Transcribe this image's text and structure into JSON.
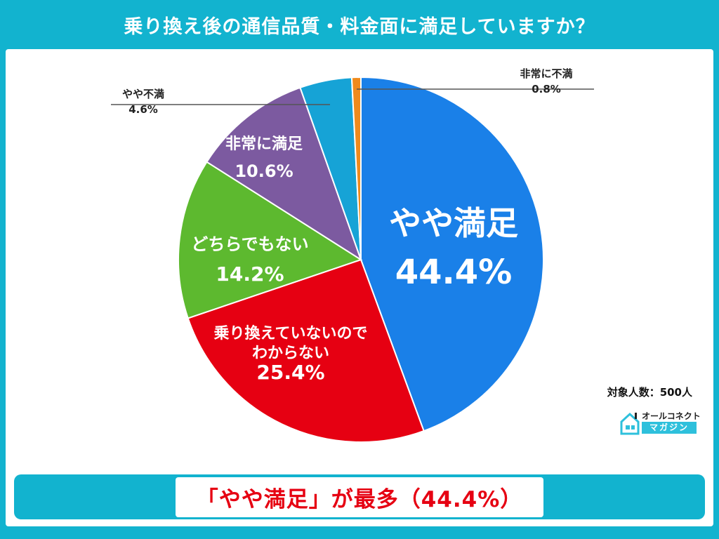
{
  "title": "乗り換え後の通信品質・料金面に満足していますか？",
  "chart_data": {
    "type": "pie",
    "slices": [
      {
        "label": "やや満足",
        "display": [
          "やや満足"
        ],
        "value": 44.4,
        "value_text": "44.4%",
        "color": "#1a80e8"
      },
      {
        "label": "乗り換えていないのでわからない",
        "display": [
          "乗り換えていないので",
          "わからない"
        ],
        "value": 25.4,
        "value_text": "25.4%",
        "color": "#e60012"
      },
      {
        "label": "どちらでもない",
        "display": [
          "どちらでもない"
        ],
        "value": 14.2,
        "value_text": "14.2%",
        "color": "#5db92f"
      },
      {
        "label": "非常に満足",
        "display": [
          "非常に満足"
        ],
        "value": 10.6,
        "value_text": "10.6%",
        "color": "#7c5aa0"
      },
      {
        "label": "やや不満",
        "display": [
          "やや不満"
        ],
        "value": 4.6,
        "value_text": "4.6%",
        "color": "#16a3d6"
      },
      {
        "label": "非常に不満",
        "display": [
          "非常に不満"
        ],
        "value": 0.8,
        "value_text": "0.8%",
        "color": "#f08a1c"
      }
    ],
    "start_angle": "12 o'clock",
    "direction": "clockwise"
  },
  "sample_size": "対象人数：500人",
  "logo": {
    "top": "オールコネクト",
    "bottom": "マガジン"
  },
  "conclusion": "「やや満足」が最多（44.4%）"
}
